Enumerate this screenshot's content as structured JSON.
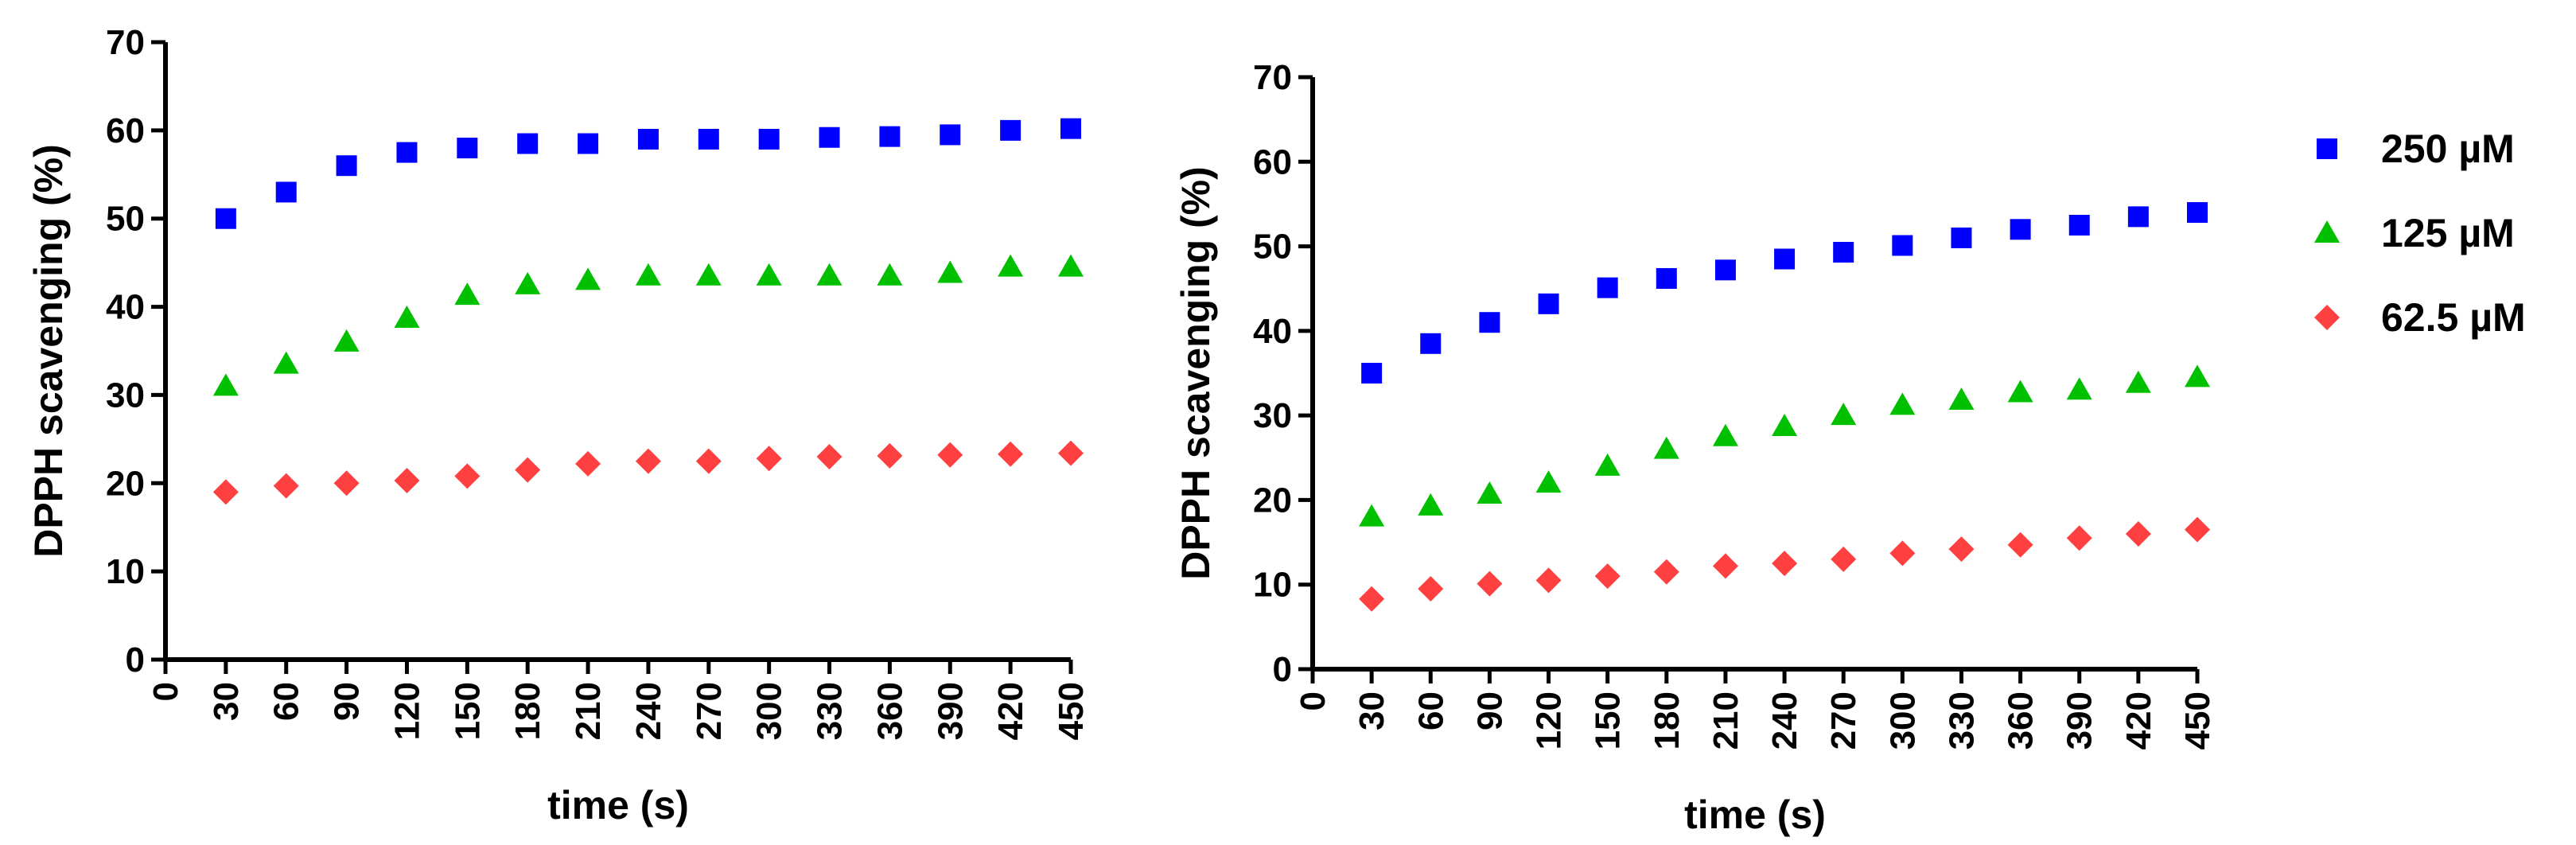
{
  "colors": {
    "s250": "#0000ff",
    "s125": "#00c000",
    "s62": "#ff4040",
    "axis": "#000000"
  },
  "legend": [
    {
      "label": "250 µM",
      "color": "#0000ff",
      "marker": "square-icon"
    },
    {
      "label": "125 µM",
      "color": "#00c000",
      "marker": "triangle-icon"
    },
    {
      "label": "62.5 µM",
      "color": "#ff4040",
      "marker": "diamond-icon"
    }
  ],
  "chart_data": [
    {
      "type": "scatter",
      "title": "",
      "xlabel": "time (s)",
      "ylabel": "DPPH scavenging (%)",
      "xlim": [
        0,
        450
      ],
      "ylim": [
        0,
        70
      ],
      "xticks": [
        0,
        30,
        60,
        90,
        120,
        150,
        180,
        210,
        240,
        270,
        300,
        330,
        360,
        390,
        420,
        450
      ],
      "yticks": [
        0,
        10,
        20,
        30,
        40,
        50,
        60,
        70
      ],
      "x": [
        30,
        60,
        90,
        120,
        150,
        180,
        210,
        240,
        270,
        300,
        330,
        360,
        390,
        420,
        450
      ],
      "series": [
        {
          "name": "250 µM",
          "marker": "square",
          "color": "#0000ff",
          "values": [
            50,
            53,
            56,
            57.5,
            58,
            58.5,
            58.5,
            59,
            59,
            59,
            59.2,
            59.3,
            59.5,
            60,
            60.2
          ]
        },
        {
          "name": "125 µM",
          "marker": "triangle",
          "color": "#00c000",
          "values": [
            31,
            33.5,
            36,
            38.7,
            41.3,
            42.5,
            43,
            43.5,
            43.5,
            43.5,
            43.5,
            43.5,
            43.8,
            44.5,
            44.5
          ]
        },
        {
          "name": "62.5 µM",
          "marker": "diamond",
          "color": "#ff4040",
          "values": [
            19,
            19.7,
            20,
            20.3,
            20.8,
            21.5,
            22.2,
            22.5,
            22.5,
            22.8,
            23,
            23.1,
            23.2,
            23.3,
            23.4
          ]
        }
      ]
    },
    {
      "type": "scatter",
      "title": "",
      "xlabel": "time (s)",
      "ylabel": "DPPH scavenging (%)",
      "xlim": [
        0,
        450
      ],
      "ylim": [
        0,
        70
      ],
      "xticks": [
        0,
        30,
        60,
        90,
        120,
        150,
        180,
        210,
        240,
        270,
        300,
        330,
        360,
        390,
        420,
        450
      ],
      "yticks": [
        0,
        10,
        20,
        30,
        40,
        50,
        60,
        70
      ],
      "x": [
        30,
        60,
        90,
        120,
        150,
        180,
        210,
        240,
        270,
        300,
        330,
        360,
        390,
        420,
        450
      ],
      "series": [
        {
          "name": "250 µM",
          "marker": "square",
          "color": "#0000ff",
          "values": [
            35,
            38.5,
            41,
            43.2,
            45.1,
            46.2,
            47.2,
            48.5,
            49.3,
            50.1,
            51,
            52,
            52.5,
            53.5,
            54
          ]
        },
        {
          "name": "125 µM",
          "marker": "triangle",
          "color": "#00c000",
          "values": [
            18,
            19.3,
            20.7,
            22,
            24,
            26,
            27.5,
            28.7,
            30,
            31.2,
            31.8,
            32.7,
            33,
            33.8,
            34.5
          ]
        },
        {
          "name": "62.5 µM",
          "marker": "diamond",
          "color": "#ff4040",
          "values": [
            8.3,
            9.5,
            10.1,
            10.5,
            11,
            11.5,
            12.2,
            12.5,
            13,
            13.7,
            14.2,
            14.7,
            15.5,
            16,
            16.5
          ]
        }
      ]
    }
  ]
}
